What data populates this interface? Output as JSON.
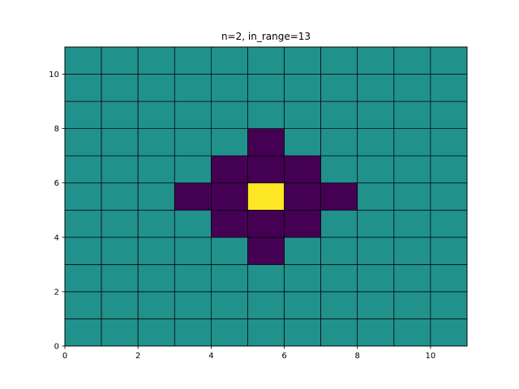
{
  "chart_data": {
    "type": "heatmap",
    "title": "n=2, in_range=13",
    "xlabel": "",
    "ylabel": "",
    "xlim": [
      0,
      11
    ],
    "ylim": [
      0,
      11
    ],
    "x_ticks": [
      0,
      2,
      4,
      6,
      8,
      10
    ],
    "y_ticks": [
      0,
      2,
      4,
      6,
      8,
      10
    ],
    "grid_lines": true,
    "colormap": "viridis",
    "colors": {
      "background": "#21918c",
      "in_range": "#440154",
      "center": "#fde725",
      "grid": "#000000"
    },
    "center_cell": [
      5,
      5
    ],
    "in_range_cells": [
      [
        5,
        3
      ],
      [
        4,
        4
      ],
      [
        5,
        4
      ],
      [
        6,
        4
      ],
      [
        3,
        5
      ],
      [
        4,
        5
      ],
      [
        6,
        5
      ],
      [
        7,
        5
      ],
      [
        4,
        6
      ],
      [
        5,
        6
      ],
      [
        6,
        6
      ],
      [
        5,
        7
      ]
    ]
  }
}
